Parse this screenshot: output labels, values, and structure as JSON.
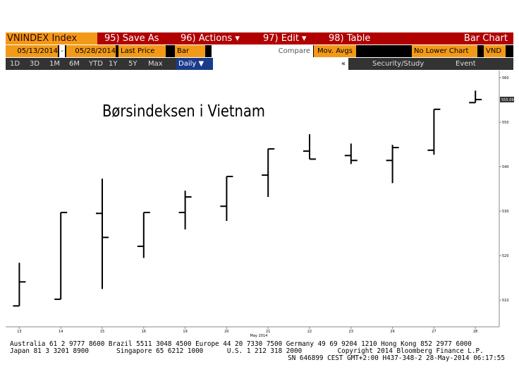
{
  "toolbar": {
    "row1": [
      "VNINDEX Index",
      "95) Save As",
      "96) Actions ▾",
      "97) Edit ▾",
      "98) Table",
      "Bar Chart"
    ],
    "row2": [
      "05/13/2014",
      "-",
      "05/28/2014",
      "Last Price",
      "Bar",
      "Compare",
      "Mov. Avgs",
      "No Lower Chart",
      "VND"
    ],
    "periods": [
      "1D",
      "3D",
      "1M",
      "6M",
      "YTD",
      "1Y",
      "5Y",
      "Max"
    ],
    "row3": [
      "Daily ▼",
      "«",
      "Security/Study",
      "Event"
    ]
  },
  "chart_data": {
    "type": "ohlc",
    "annotation": "Børsindeksen i Vietnam",
    "x_axis_label": "May 2014",
    "color": "#000000",
    "categories": [
      "13",
      "14",
      "15",
      "16",
      "19",
      "20",
      "21",
      "22",
      "23",
      "26",
      "27",
      "28"
    ],
    "open": [
      508.7,
      510.2,
      529.5,
      522.1,
      529.7,
      531.1,
      538.1,
      543.5,
      542.5,
      541.4,
      543.7,
      554.4
    ],
    "high": [
      518.4,
      529.7,
      537.3,
      529.7,
      534.6,
      537.8,
      544.0,
      547.3,
      545.2,
      544.9,
      552.9,
      557.1
    ],
    "low": [
      508.7,
      510.2,
      512.5,
      519.5,
      525.9,
      527.8,
      533.2,
      541.7,
      540.6,
      536.3,
      542.7,
      554.4
    ],
    "close": [
      514.1,
      529.7,
      524.1,
      529.7,
      533.2,
      537.8,
      544.0,
      541.7,
      541.4,
      544.3,
      552.9,
      555.09
    ],
    "ylim": [
      504,
      561.6
    ],
    "yticks": [
      510,
      520,
      530,
      540,
      550,
      560
    ]
  },
  "footer": [
    "Australia 61 2 9777 8600 Brazil 5511 3048 4500 Europe 44 20 7330 7500 Germany 49 69 9204 1210 Hong Kong 852 2977 6000",
    "Japan 81 3 3201 8900       Singapore 65 6212 1000      U.S. 1 212 318 2000         Copyright 2014 Bloomberg Finance L.P.",
    "SN 646899 CEST GMT+2:00 H437-348-2 28-May-2014 06:17:55"
  ]
}
